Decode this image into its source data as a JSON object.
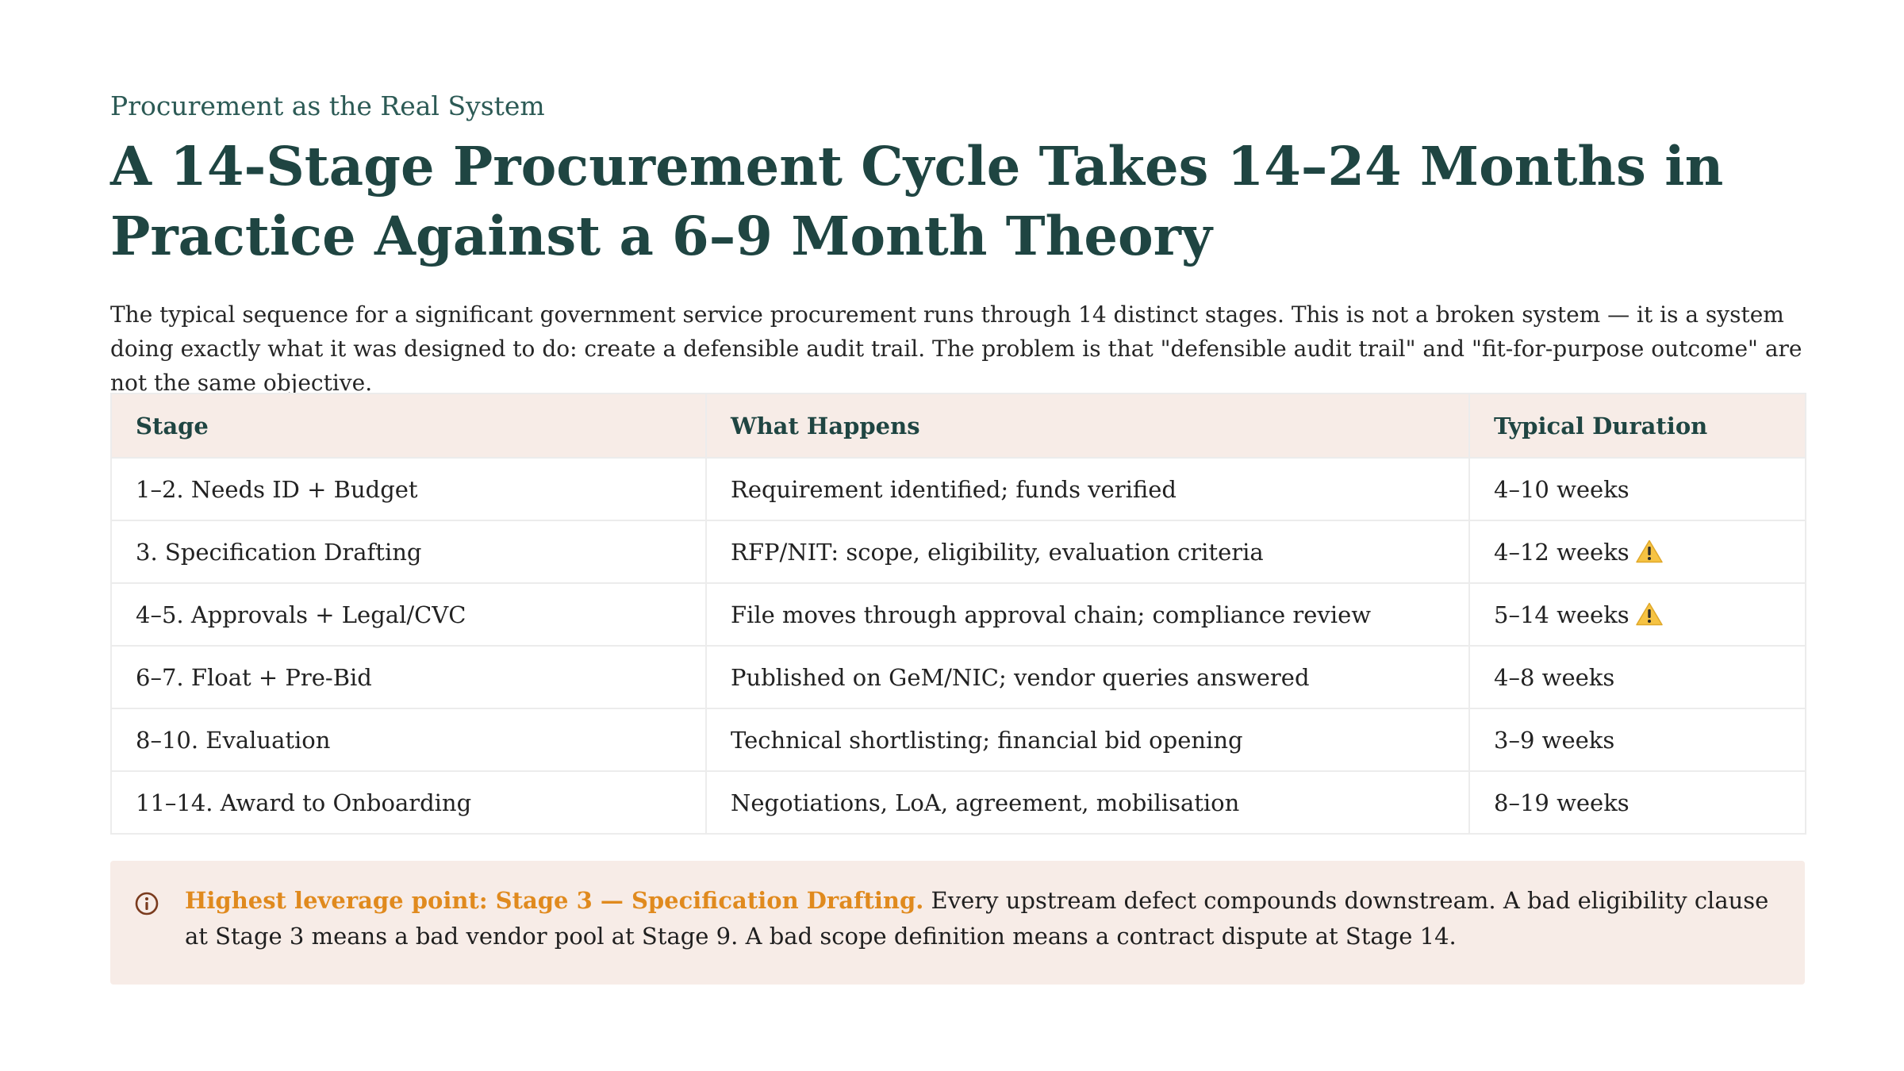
{
  "slide": {
    "eyebrow": "Procurement as the Real System",
    "title": "A 14-Stage Procurement Cycle Takes 14–24 Months in Practice Against a 6–9 Month Theory",
    "intro": "The typical sequence for a significant government service procurement runs through 14 distinct stages. This is not a broken system — it is a system doing exactly what it was designed to do: create a defensible audit trail. The problem is that \"defensible audit trail\" and \"fit-for-purpose outcome\" are not the same objective."
  },
  "table": {
    "headers": [
      "Stage",
      "What Happens",
      "Typical Duration"
    ],
    "rows": [
      {
        "stage": "1–2. Needs ID + Budget",
        "what": "Requirement identified; funds verified",
        "duration": "4–10 weeks",
        "warning": false
      },
      {
        "stage": "3. Specification Drafting",
        "what": "RFP/NIT: scope, eligibility, evaluation criteria",
        "duration": "4–12 weeks",
        "warning": true
      },
      {
        "stage": "4–5. Approvals + Legal/CVC",
        "what": "File moves through approval chain; compliance review",
        "duration": "5–14 weeks",
        "warning": true
      },
      {
        "stage": "6–7. Float + Pre-Bid",
        "what": "Published on GeM/NIC; vendor queries answered",
        "duration": "4–8 weeks",
        "warning": false
      },
      {
        "stage": "8–10. Evaluation",
        "what": "Technical shortlisting; financial bid opening",
        "duration": "3–9 weeks",
        "warning": false
      },
      {
        "stage": "11–14. Award to Onboarding",
        "what": "Negotiations, LoA, agreement, mobilisation",
        "duration": "8–19 weeks",
        "warning": false
      }
    ]
  },
  "callout": {
    "icon": "info-icon",
    "lead": "Highest leverage point: Stage 3 — Specification Drafting.",
    "body": " Every upstream defect compounds downstream. A bad eligibility clause at Stage 3 means a bad vendor pool at Stage 9. A bad scope definition means a contract dispute at Stage 14."
  },
  "colors": {
    "title": "#1f4542",
    "eyebrow": "#2c5a55",
    "header_bg": "#f7ece7",
    "callout_bg": "#f7ece7",
    "accent": "#e08a1e",
    "warning": "#f6c343"
  }
}
